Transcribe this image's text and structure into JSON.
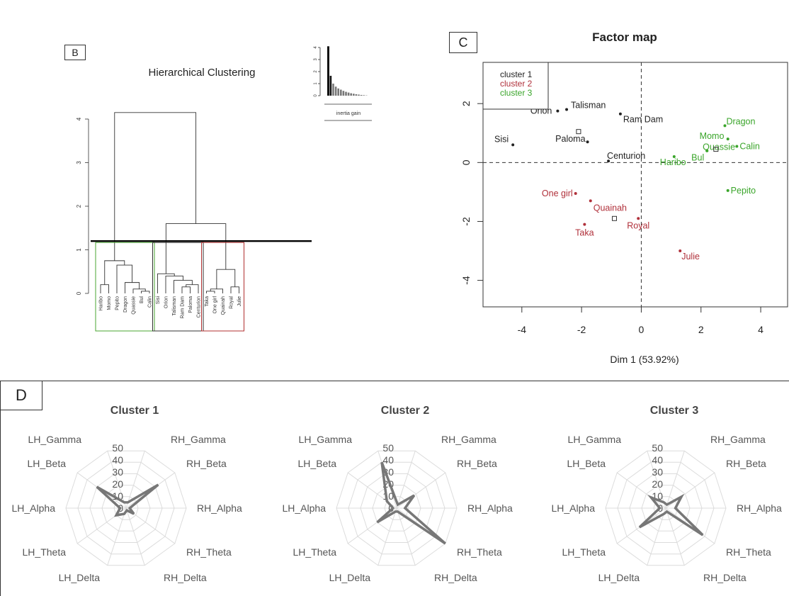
{
  "panel_b": {
    "label": "B",
    "title": "Hierarchical Clustering",
    "inertia_label": "inertia gain",
    "inertia_bars": [
      4.1,
      1.65,
      1.0,
      0.75,
      0.6,
      0.5,
      0.4,
      0.32,
      0.26,
      0.2,
      0.16,
      0.12,
      0.09,
      0.06,
      0.04,
      0.02
    ],
    "inertia_yticks": [
      "0",
      "1",
      "2",
      "3",
      "4"
    ],
    "yticks": [
      "0",
      "1",
      "2",
      "3",
      "4"
    ],
    "leaves": [
      "Haribo",
      "Momo",
      "Pepito",
      "Dragon",
      "Quassie",
      "Bul",
      "Calin",
      "Sisi",
      "Orion",
      "Talisman",
      "Ram Dam",
      "Paloma",
      "Centurion",
      "Taka",
      "One girl",
      "Quainah",
      "Royal",
      "Julie"
    ],
    "cut_height": 1.2,
    "cluster_box_colors": [
      "#4aa532",
      "#333333",
      "#b03030"
    ]
  },
  "panel_c": {
    "label": "C",
    "title": "Factor map",
    "xlabel": "Dim 1 (53.92%)",
    "xticks": [
      "-4",
      "-2",
      "0",
      "2",
      "4"
    ],
    "yticks": [
      "2",
      "0",
      "-2",
      "-4"
    ],
    "legend": [
      {
        "label": "cluster 1",
        "color": "#222222"
      },
      {
        "label": "cluster 2",
        "color": "#b0303a"
      },
      {
        "label": "cluster 3",
        "color": "#3aa52a"
      }
    ]
  },
  "panel_d": {
    "label": "D",
    "axes_labels": [
      "RH_Gamma",
      "RH_Beta",
      "RH_Alpha",
      "RH_Theta",
      "RH_Delta",
      "LH_Delta",
      "LH_Theta",
      "LH_Alpha",
      "LH_Beta",
      "LH_Gamma"
    ],
    "rings": [
      "0",
      "10",
      "20",
      "30",
      "40",
      "50"
    ],
    "titles": [
      "Cluster 1",
      "Cluster 2",
      "Cluster 3"
    ]
  },
  "chart_data": [
    {
      "type": "dendrogram",
      "title": "Hierarchical Clustering",
      "ylim": [
        0,
        4.5
      ],
      "leaves": [
        "Haribo",
        "Momo",
        "Pepito",
        "Dragon",
        "Quassie",
        "Bul",
        "Calin",
        "Sisi",
        "Orion",
        "Talisman",
        "Ram Dam",
        "Paloma",
        "Centurion",
        "Taka",
        "One girl",
        "Quainah",
        "Royal",
        "Julie"
      ],
      "merges": [
        {
          "a": "Bul",
          "b": "Calin",
          "height": 0.05
        },
        {
          "a": "Quassie",
          "b": "Bul+Calin",
          "height": 0.1
        },
        {
          "a": "Dragon",
          "b": "Quassie+Bul+Calin",
          "height": 0.25
        },
        {
          "a": "Pepito",
          "b": "Dragon+Quassie+Bul+Calin",
          "height": 0.65
        },
        {
          "a": "Haribo",
          "b": "Momo",
          "height": 0.2
        },
        {
          "a": "Haribo+Momo",
          "b": "Pepito+...",
          "height": 0.75
        },
        {
          "a": "Ram Dam",
          "b": "Paloma",
          "height": 0.15
        },
        {
          "a": "Ram Dam+Paloma",
          "b": "Centurion",
          "height": 0.05
        },
        {
          "a": "Talisman",
          "b": "Ram Dam+Paloma+Centurion",
          "height": 0.2
        },
        {
          "a": "Orion",
          "b": "Talisman+...",
          "height": 0.25
        },
        {
          "a": "Sisi",
          "b": "Orion+...",
          "height": 0.45
        },
        {
          "a": "Taka",
          "b": "One girl",
          "height": 0.05
        },
        {
          "a": "Taka+One girl",
          "b": "Quainah",
          "height": 0.1
        },
        {
          "a": "Royal",
          "b": "Julie",
          "height": 0.15
        },
        {
          "a": "Taka+One girl+Quainah",
          "b": "Royal+Julie",
          "height": 0.55
        },
        {
          "a": "cluster 1",
          "b": "cluster 2",
          "height": 1.6
        },
        {
          "a": "cluster 3",
          "b": "cluster 1+2",
          "height": 4.15
        }
      ],
      "inertia_gain": [
        4.1,
        1.65,
        1.0,
        0.75,
        0.6,
        0.5,
        0.4,
        0.32,
        0.26,
        0.2,
        0.16,
        0.12,
        0.09,
        0.06,
        0.04,
        0.02
      ]
    },
    {
      "type": "scatter",
      "title": "Factor map",
      "xlabel": "Dim 1 (53.92%)",
      "ylabel": "",
      "xlim": [
        -5.3,
        4.9
      ],
      "ylim": [
        -4.9,
        3.4
      ],
      "series": [
        {
          "name": "cluster 1",
          "color": "#222222",
          "points": [
            {
              "label": "Talisman",
              "x": -2.5,
              "y": 1.8
            },
            {
              "label": "Orion",
              "x": -2.8,
              "y": 1.75
            },
            {
              "label": "Ram Dam",
              "x": -0.7,
              "y": 1.65
            },
            {
              "label": "Sisi",
              "x": -4.3,
              "y": 0.6
            },
            {
              "label": "Paloma",
              "x": -1.8,
              "y": 0.7
            },
            {
              "label": "Centurion",
              "x": -1.1,
              "y": 0.05
            }
          ]
        },
        {
          "name": "cluster 2",
          "color": "#b0303a",
          "points": [
            {
              "label": "One girl",
              "x": -2.2,
              "y": -1.05
            },
            {
              "label": "Quainah",
              "x": -1.7,
              "y": -1.3
            },
            {
              "label": "Taka",
              "x": -1.9,
              "y": -2.1
            },
            {
              "label": "Royal",
              "x": -0.1,
              "y": -1.9
            },
            {
              "label": "Julie",
              "x": 1.3,
              "y": -3.0
            }
          ]
        },
        {
          "name": "cluster 3",
          "color": "#3aa52a",
          "points": [
            {
              "label": "Dragon",
              "x": 2.8,
              "y": 1.25
            },
            {
              "label": "Momo",
              "x": 2.9,
              "y": 0.8
            },
            {
              "label": "Calin",
              "x": 3.2,
              "y": 0.55
            },
            {
              "label": "Quassie",
              "x": 2.2,
              "y": 0.4
            },
            {
              "label": "Bul",
              "x": 2.2,
              "y": 0.4
            },
            {
              "label": "Haribo",
              "x": 1.1,
              "y": 0.2
            },
            {
              "label": "Pepito",
              "x": 2.9,
              "y": -0.95
            }
          ]
        }
      ],
      "centroids": [
        {
          "x": -2.1,
          "y": 1.05
        },
        {
          "x": -0.9,
          "y": -1.9
        },
        {
          "x": 2.5,
          "y": 0.45
        }
      ]
    },
    {
      "type": "radar",
      "title": "Cluster 1",
      "axes": [
        "RH_Gamma",
        "RH_Beta",
        "RH_Alpha",
        "RH_Theta",
        "RH_Delta",
        "LH_Delta",
        "LH_Theta",
        "LH_Alpha",
        "LH_Beta",
        "LH_Gamma"
      ],
      "ylim": [
        0,
        50
      ],
      "values": [
        5,
        33,
        3,
        8,
        2,
        5,
        10,
        5,
        30,
        5
      ]
    },
    {
      "type": "radar",
      "title": "Cluster 2",
      "axes": [
        "RH_Gamma",
        "RH_Beta",
        "RH_Alpha",
        "RH_Theta",
        "RH_Delta",
        "LH_Delta",
        "LH_Theta",
        "LH_Alpha",
        "LH_Beta",
        "LH_Gamma"
      ],
      "ylim": [
        0,
        50
      ],
      "values": [
        3,
        18,
        7,
        50,
        3,
        3,
        20,
        3,
        10,
        40
      ]
    },
    {
      "type": "radar",
      "title": "Cluster 3",
      "axes": [
        "RH_Gamma",
        "RH_Beta",
        "RH_Alpha",
        "RH_Theta",
        "RH_Delta",
        "LH_Delta",
        "LH_Theta",
        "LH_Alpha",
        "LH_Beta",
        "LH_Gamma"
      ],
      "ylim": [
        0,
        50
      ],
      "values": [
        3,
        16,
        8,
        38,
        3,
        5,
        27,
        5,
        15,
        5
      ]
    }
  ]
}
